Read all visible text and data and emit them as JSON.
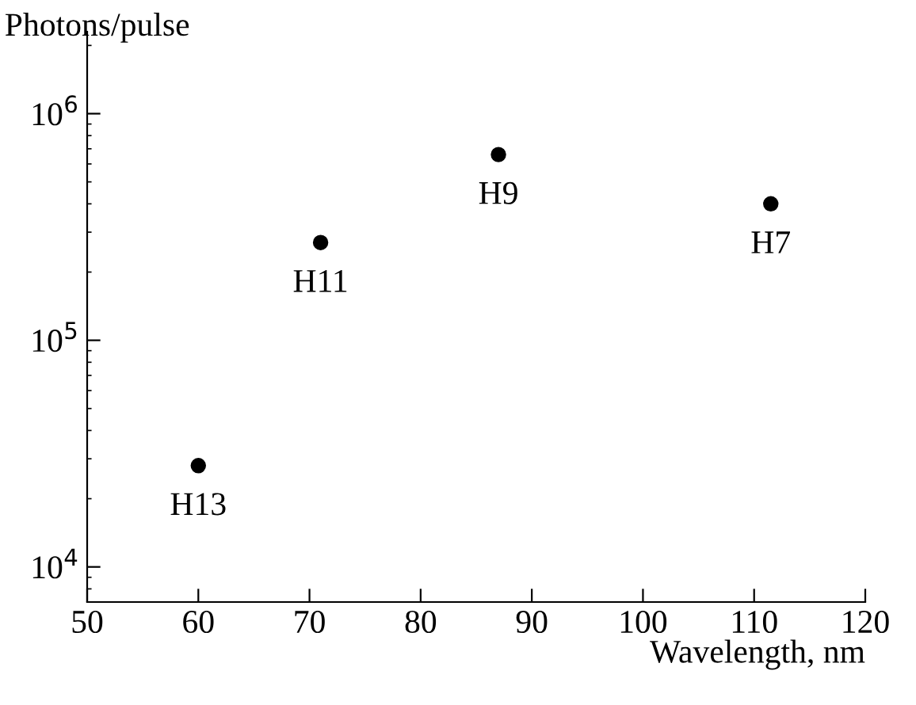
{
  "chart_data": {
    "type": "scatter",
    "xlabel": "Wavelength, nm",
    "ylabel": "Photons/pulse",
    "x": [
      60,
      71,
      87,
      111.5
    ],
    "values": [
      28000,
      270000,
      660000,
      400000
    ],
    "color": "#000000",
    "marker": "circle",
    "log": "y",
    "grid": false,
    "legend": false,
    "xlim": [
      50,
      120
    ],
    "xticks": [
      50,
      60,
      70,
      80,
      90,
      100,
      110,
      120
    ],
    "ylim": [
      7000,
      2300000
    ],
    "yticks": [
      {
        "value": 10000,
        "label": "10$^{4}$"
      },
      {
        "value": 100000,
        "label": "10$^{5}$"
      },
      {
        "value": 1000000,
        "label": "10$^{6}$"
      }
    ],
    "annotations": [
      {
        "text": "H13",
        "x": 60,
        "y": 28000
      },
      {
        "text": "H11",
        "x": 71,
        "y": 270000
      },
      {
        "text": "H9",
        "x": 87,
        "y": 660000
      },
      {
        "text": "H7",
        "x": 111.5,
        "y": 400000
      }
    ]
  }
}
